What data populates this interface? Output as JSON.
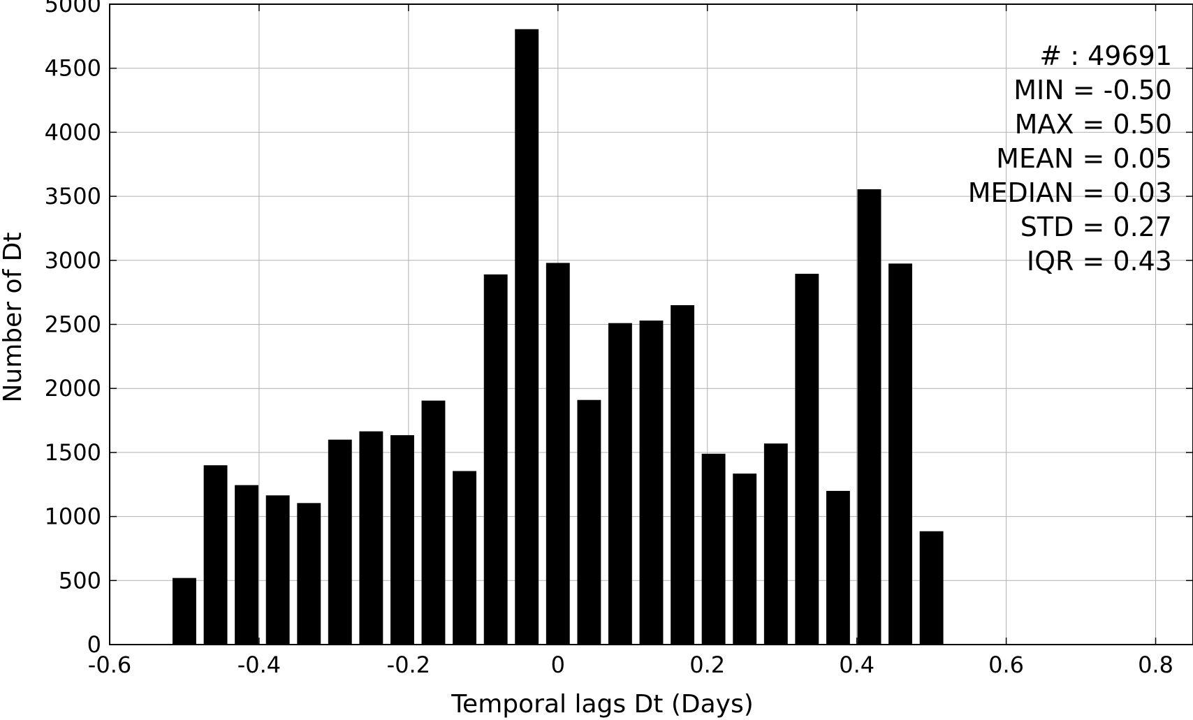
{
  "chart_data": {
    "type": "bar",
    "xlabel": "Temporal lags Dt (Days)",
    "ylabel": "Number of Dt",
    "xlim": [
      -0.6,
      0.85
    ],
    "ylim": [
      0,
      5000
    ],
    "x_ticks": [
      "-0.6",
      "-0.4",
      "-0.2",
      "0",
      "0.2",
      "0.4",
      "0.6",
      "0.8"
    ],
    "y_ticks": [
      "0",
      "500",
      "1000",
      "1500",
      "2000",
      "2500",
      "3000",
      "3500",
      "4000",
      "4500",
      "5000"
    ],
    "grid": true,
    "bar_color": "#000000",
    "x": [
      -0.5,
      -0.4583,
      -0.4167,
      -0.375,
      -0.3333,
      -0.2917,
      -0.25,
      -0.2083,
      -0.1667,
      -0.125,
      -0.0833,
      -0.0417,
      0.0,
      0.0417,
      0.0833,
      0.125,
      0.1667,
      0.2083,
      0.25,
      0.2917,
      0.3333,
      0.375,
      0.4167,
      0.4583,
      0.5
    ],
    "values": [
      520,
      1400,
      1245,
      1165,
      1105,
      1600,
      1665,
      1635,
      1905,
      1355,
      2890,
      4805,
      2980,
      1910,
      2510,
      2530,
      2650,
      1490,
      1335,
      1570,
      2895,
      1200,
      3555,
      2975,
      885
    ],
    "stats": [
      "# : 49691",
      "MIN = -0.50",
      "MAX =  0.50",
      "MEAN = 0.05",
      "MEDIAN = 0.03",
      "STD = 0.27",
      "IQR = 0.43"
    ]
  }
}
